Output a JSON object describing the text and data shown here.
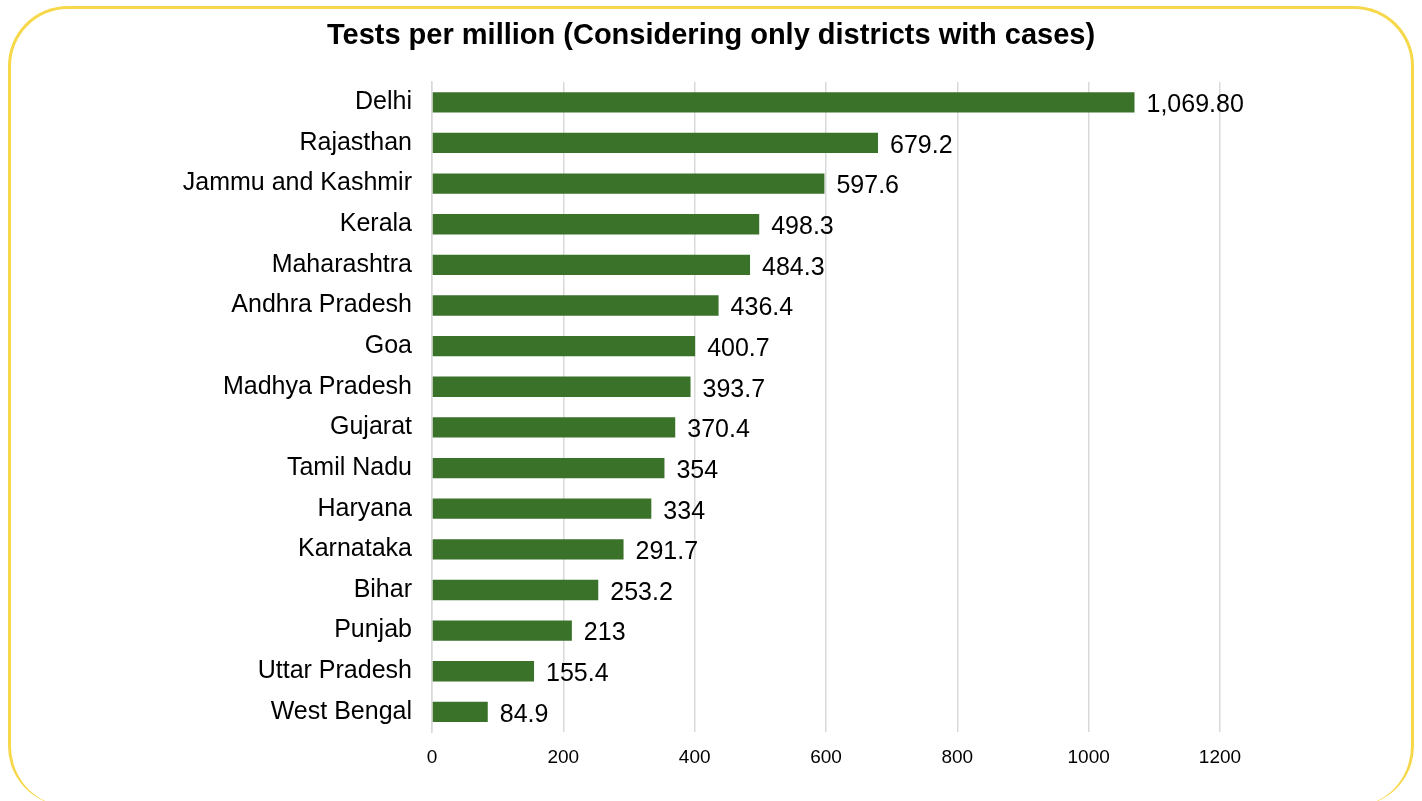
{
  "chart_data": {
    "type": "bar",
    "orientation": "horizontal",
    "title": "Tests per million (Considering only districts with cases)",
    "categories": [
      "Delhi",
      "Rajasthan",
      "Jammu and Kashmir",
      "Kerala",
      "Maharashtra",
      "Andhra Pradesh",
      "Goa",
      "Madhya Pradesh",
      "Gujarat",
      "Tamil Nadu",
      "Haryana",
      "Karnataka",
      "Bihar",
      "Punjab",
      "Uttar Pradesh",
      "West Bengal"
    ],
    "values": [
      1069.8,
      679.2,
      597.6,
      498.3,
      484.3,
      436.4,
      400.7,
      393.7,
      370.4,
      354,
      334,
      291.7,
      253.2,
      213,
      155.4,
      84.9
    ],
    "value_labels": [
      "1,069.80",
      "679.2",
      "597.6",
      "498.3",
      "484.3",
      "436.4",
      "400.7",
      "393.7",
      "370.4",
      "354",
      "334",
      "291.7",
      "253.2",
      "213",
      "155.4",
      "84.9"
    ],
    "color": "#3a722a",
    "xlim": [
      0,
      1200
    ],
    "xticks": [
      0,
      200,
      400,
      600,
      800,
      1000,
      1200
    ],
    "grid": "x",
    "legend": false
  }
}
